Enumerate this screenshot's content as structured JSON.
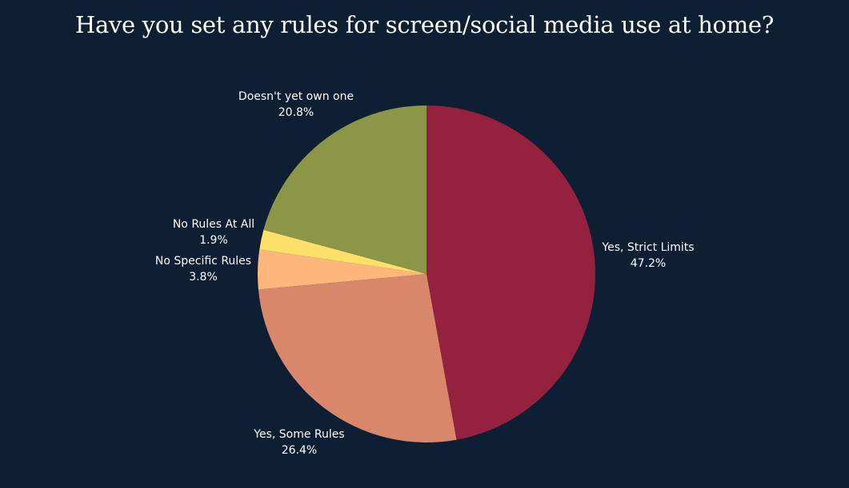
{
  "chart_data": {
    "type": "pie",
    "title": "Have you set any rules for screen/social media use at home?",
    "slices": [
      {
        "label": "Yes, Strict Limits",
        "value": 47.2,
        "display": "47.2%",
        "color": "#94213d"
      },
      {
        "label": "Yes, Some Rules",
        "value": 26.4,
        "display": "26.4%",
        "color": "#d8876a"
      },
      {
        "label": "No Specific Rules",
        "value": 3.8,
        "display": "3.8%",
        "color": "#fdb77a"
      },
      {
        "label": "No Rules At All",
        "value": 1.9,
        "display": "1.9%",
        "color": "#fde06a"
      },
      {
        "label": "Doesn't yet own one",
        "value": 20.8,
        "display": "20.8%",
        "color": "#8b9646"
      }
    ],
    "start": "12 o'clock",
    "direction": "clockwise"
  },
  "background_color": "#0e1e33"
}
